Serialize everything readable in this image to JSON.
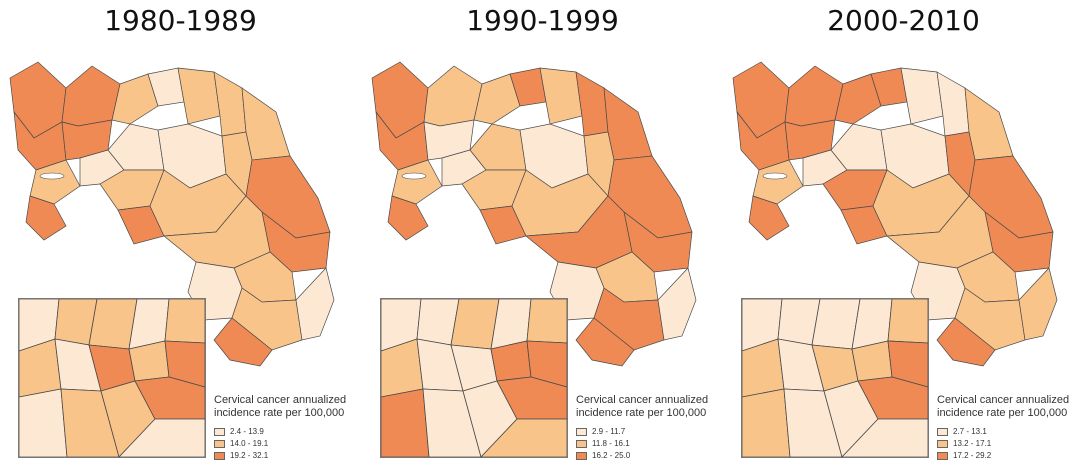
{
  "legend_title_line1": "Cervical cancer annualized",
  "legend_title_line2": "incidence rate per 100,000",
  "colors": {
    "low": "#fde9d3",
    "mid": "#f9c48a",
    "high": "#f08a55",
    "border": "#4a4a4a"
  },
  "panels": [
    {
      "title": "1980-1989",
      "legend": [
        {
          "label": "2.4 - 13.9",
          "class": "low"
        },
        {
          "label": "14.0 - 19.1",
          "class": "mid"
        },
        {
          "label": "19.2 - 32.1",
          "class": "high"
        }
      ]
    },
    {
      "title": "1990-1999",
      "legend": [
        {
          "label": "2.9 - 11.7",
          "class": "low"
        },
        {
          "label": "11.8 - 16.1",
          "class": "mid"
        },
        {
          "label": "16.2 - 25.0",
          "class": "high"
        }
      ]
    },
    {
      "title": "2000-2010",
      "legend": [
        {
          "label": "2.7 - 13.1",
          "class": "low"
        },
        {
          "label": "13.2 - 17.1",
          "class": "mid"
        },
        {
          "label": "17.2 - 29.2",
          "class": "high"
        }
      ]
    }
  ]
}
